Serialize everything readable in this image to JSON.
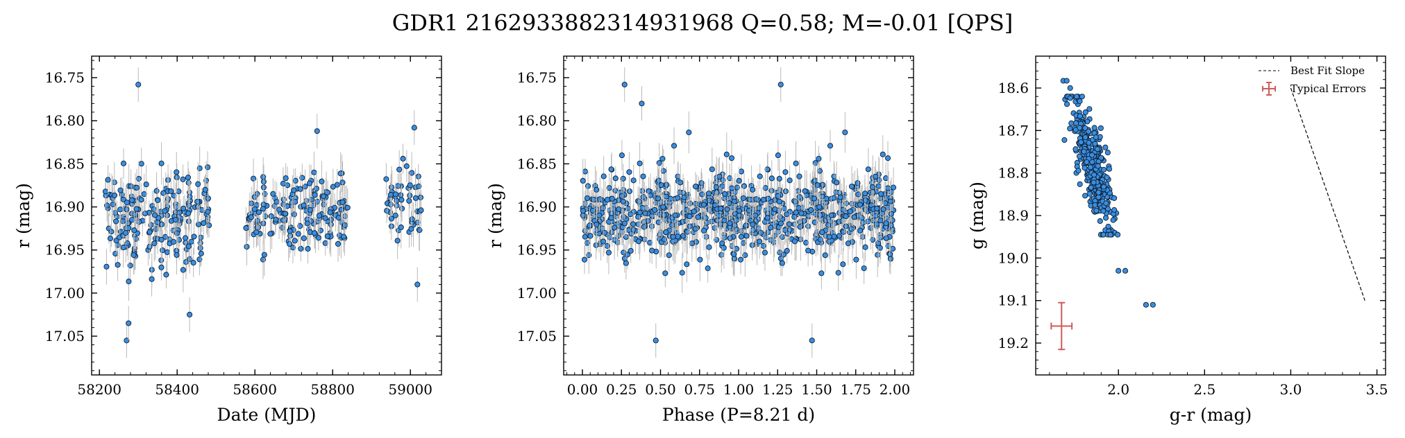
{
  "title": "GDR1 2162933882314931968  Q=0.58; M=-0.01 [QPS]",
  "chart_data": [
    {
      "type": "scatter",
      "id": "lightcurve",
      "xlabel": "Date (MJD)",
      "ylabel": "r (mag)",
      "xlim": [
        58180,
        59080
      ],
      "ylim": [
        17.095,
        16.725
      ],
      "y_inverted": true,
      "xticks": [
        58200,
        58400,
        58600,
        58800,
        59000
      ],
      "xtick_labels": [
        "58200",
        "58400",
        "58600",
        "58800",
        "59000"
      ],
      "yticks": [
        16.75,
        16.8,
        16.85,
        16.9,
        16.95,
        17.0,
        17.05
      ],
      "ytick_labels": [
        "16.75",
        "16.80",
        "16.85",
        "16.90",
        "16.95",
        "17.00",
        "17.05"
      ],
      "typical_error": 0.02,
      "segments": [
        {
          "x_range": [
            58215,
            58485
          ],
          "y_center": 16.915,
          "y_spread": 0.045,
          "n": 210
        },
        {
          "x_range": [
            58575,
            58840
          ],
          "y_center": 16.905,
          "y_spread": 0.035,
          "n": 170
        },
        {
          "x_range": [
            58935,
            59030
          ],
          "y_center": 16.89,
          "y_spread": 0.04,
          "n": 50
        }
      ],
      "highlight_points": [
        {
          "x": 58300,
          "y": 16.758
        },
        {
          "x": 58270,
          "y": 17.055
        },
        {
          "x": 58275,
          "y": 17.035
        },
        {
          "x": 58432,
          "y": 17.025
        },
        {
          "x": 58760,
          "y": 16.812
        },
        {
          "x": 59018,
          "y": 16.99
        },
        {
          "x": 59010,
          "y": 16.808
        }
      ]
    },
    {
      "type": "scatter",
      "id": "phased",
      "xlabel": "Phase (P=8.21 d)",
      "ylabel": "r (mag)",
      "xlim": [
        -0.12,
        2.12
      ],
      "ylim": [
        17.095,
        16.725
      ],
      "y_inverted": true,
      "xticks": [
        0.0,
        0.25,
        0.5,
        0.75,
        1.0,
        1.25,
        1.5,
        1.75,
        2.0
      ],
      "xtick_labels": [
        "0.00",
        "0.25",
        "0.50",
        "0.75",
        "1.00",
        "1.25",
        "1.50",
        "1.75",
        "2.00"
      ],
      "yticks": [
        16.75,
        16.8,
        16.85,
        16.9,
        16.95,
        17.0,
        17.05
      ],
      "ytick_labels": [
        "16.75",
        "16.80",
        "16.85",
        "16.90",
        "16.95",
        "17.00",
        "17.05"
      ],
      "typical_error": 0.02,
      "y_center": 16.91,
      "y_spread": 0.04,
      "n_per_cycle": 430,
      "highlight_points": [
        {
          "x": 0.27,
          "y": 16.758
        },
        {
          "x": 1.27,
          "y": 16.758
        },
        {
          "x": 0.38,
          "y": 16.78
        },
        {
          "x": 0.47,
          "y": 17.055
        },
        {
          "x": 1.47,
          "y": 17.055
        }
      ]
    },
    {
      "type": "scatter",
      "id": "color_magnitude",
      "xlabel": "g-r (mag)",
      "ylabel": "g (mag)",
      "xlim": [
        1.52,
        3.55
      ],
      "ylim": [
        19.275,
        18.525
      ],
      "y_inverted": true,
      "xticks": [
        2.0,
        2.5,
        3.0,
        3.5
      ],
      "xtick_labels": [
        "2.0",
        "2.5",
        "3.0",
        "3.5"
      ],
      "yticks": [
        18.6,
        18.7,
        18.8,
        18.9,
        19.0,
        19.1,
        19.2
      ],
      "ytick_labels": [
        "18.6",
        "18.7",
        "18.8",
        "18.9",
        "19.0",
        "19.1",
        "19.2"
      ],
      "n": 420,
      "cluster": {
        "x_center": 1.85,
        "y_center": 18.78,
        "slope": 0.55
      },
      "outliers": [
        {
          "x": 1.68,
          "y": 18.583
        },
        {
          "x": 1.7,
          "y": 18.583
        },
        {
          "x": 1.72,
          "y": 18.6
        },
        {
          "x": 2.0,
          "y": 19.03
        },
        {
          "x": 2.04,
          "y": 19.03
        },
        {
          "x": 2.16,
          "y": 19.11
        },
        {
          "x": 2.2,
          "y": 19.11
        }
      ],
      "best_fit_slope": {
        "x": [
          3.0,
          3.43
        ],
        "y": [
          18.6,
          19.1
        ]
      },
      "typical_errors": {
        "x": 1.67,
        "y": 19.16,
        "xerr": 0.06,
        "yerr": 0.055
      },
      "legend": {
        "position": "top-right",
        "entries": [
          {
            "label": "Best Fit Slope",
            "style": "dashed-line"
          },
          {
            "label": "Typical Errors",
            "style": "errorbar"
          }
        ]
      }
    }
  ],
  "colors": {
    "point_fill": "#3b8ede",
    "point_edge": "#0b1e33",
    "error_bar": "#b9b9b9",
    "typical_error": "#d05a5a",
    "fit_line": "#000000"
  }
}
